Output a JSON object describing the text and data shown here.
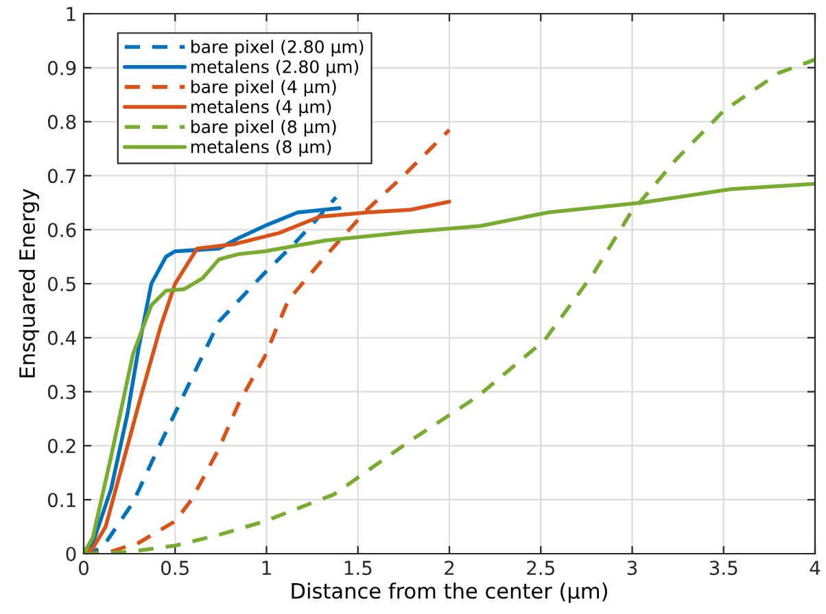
{
  "chart_data": {
    "type": "line",
    "xlabel": "Distance from the center (µm)",
    "ylabel": "Ensquared Energy",
    "xlim": [
      0,
      4
    ],
    "ylim": [
      0,
      1
    ],
    "xticks": [
      0,
      0.5,
      1,
      1.5,
      2,
      2.5,
      3,
      3.5,
      4
    ],
    "yticks": [
      0,
      0.1,
      0.2,
      0.3,
      0.4,
      0.5,
      0.6,
      0.7,
      0.8,
      0.9,
      1
    ],
    "grid": true,
    "legend": "top left",
    "series": [
      {
        "name": "bare pixel (2.80 µm)",
        "color": "#0072bd",
        "line_style": "dashed",
        "x": [
          0,
          0.1,
          0.27,
          0.4,
          0.57,
          0.74,
          0.99,
          1.14,
          1.25,
          1.38
        ],
        "values": [
          0,
          0.01,
          0.095,
          0.19,
          0.31,
          0.43,
          0.52,
          0.57,
          0.61,
          0.66
        ]
      },
      {
        "name": "metalens (2.80 µm)",
        "color": "#0072bd",
        "line_style": "solid",
        "x": [
          0,
          0.05,
          0.15,
          0.24,
          0.3,
          0.37,
          0.45,
          0.5,
          0.6,
          0.74,
          0.85,
          0.99,
          1.17,
          1.4
        ],
        "values": [
          0,
          0.02,
          0.12,
          0.26,
          0.38,
          0.5,
          0.55,
          0.56,
          0.562,
          0.565,
          0.585,
          0.607,
          0.632,
          0.64
        ]
      },
      {
        "name": "bare pixel (4 µm)",
        "color": "#d95319",
        "line_style": "dashed",
        "x": [
          0,
          0.14,
          0.3,
          0.5,
          0.59,
          0.74,
          0.85,
          0.99,
          1.12,
          1.32,
          1.55,
          1.75,
          2.0
        ],
        "values": [
          0,
          0.003,
          0.02,
          0.06,
          0.1,
          0.195,
          0.28,
          0.365,
          0.47,
          0.55,
          0.637,
          0.7,
          0.785
        ]
      },
      {
        "name": "metalens (4 µm)",
        "color": "#d95319",
        "line_style": "solid",
        "x": [
          0,
          0.05,
          0.12,
          0.2,
          0.32,
          0.42,
          0.5,
          0.62,
          0.82,
          1.07,
          1.29,
          1.55,
          1.79,
          2.0
        ],
        "values": [
          0,
          0.01,
          0.05,
          0.15,
          0.3,
          0.42,
          0.5,
          0.565,
          0.573,
          0.594,
          0.624,
          0.632,
          0.637,
          0.652
        ]
      },
      {
        "name": "bare pixel (8 µm)",
        "color": "#77ac30",
        "line_style": "dashed",
        "x": [
          0,
          0.24,
          0.5,
          0.74,
          0.99,
          1.37,
          1.79,
          2.15,
          2.52,
          2.79,
          2.99,
          3.24,
          3.5,
          3.8,
          4.0
        ],
        "values": [
          0,
          0.003,
          0.015,
          0.035,
          0.06,
          0.11,
          0.21,
          0.29,
          0.395,
          0.52,
          0.63,
          0.73,
          0.82,
          0.89,
          0.915
        ]
      },
      {
        "name": "metalens (8 µm)",
        "color": "#77ac30",
        "line_style": "solid",
        "x": [
          0,
          0.05,
          0.15,
          0.27,
          0.37,
          0.45,
          0.55,
          0.65,
          0.74,
          0.85,
          0.99,
          1.32,
          1.79,
          2.17,
          2.54,
          3.05,
          3.54,
          4.0
        ],
        "values": [
          0,
          0.03,
          0.18,
          0.37,
          0.46,
          0.487,
          0.49,
          0.51,
          0.545,
          0.555,
          0.56,
          0.58,
          0.596,
          0.607,
          0.632,
          0.65,
          0.675,
          0.685
        ]
      }
    ]
  }
}
